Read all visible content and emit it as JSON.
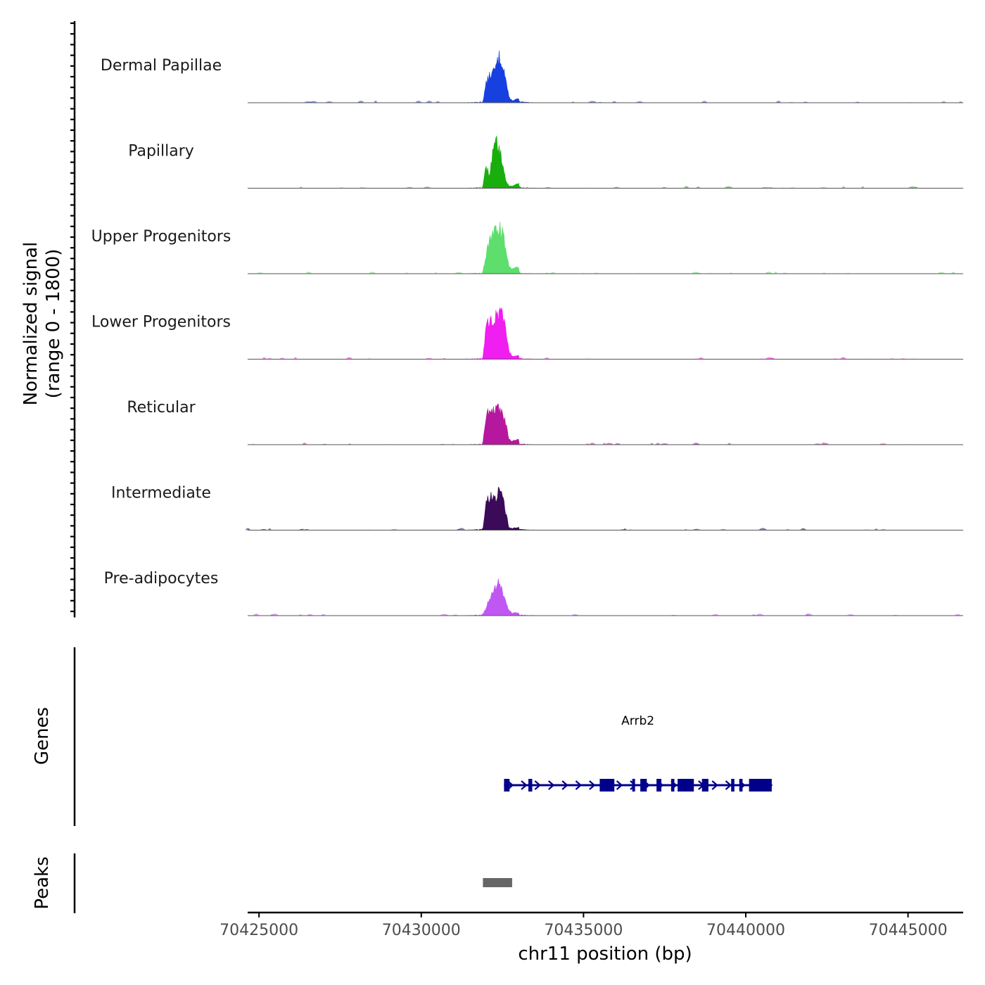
{
  "chart_data": {
    "type": "area",
    "title": "",
    "chromosome": "chr11",
    "xlabel": "chr11 position (bp)",
    "ylabel": "Normalized signal",
    "ylabel_range": "(range 0 - 1800)",
    "xlim": [
      70424650,
      70446700
    ],
    "ylim": [
      0,
      1800
    ],
    "x_ticks": [
      70425000,
      70430000,
      70435000,
      70440000,
      70445000
    ],
    "x_tick_labels": [
      "70425000",
      "70430000",
      "70435000",
      "70440000",
      "70445000"
    ],
    "peak_summary_x": [
      70431900,
      70432000,
      70432100,
      70432200,
      70432300,
      70432400,
      70432500,
      70432600,
      70432700,
      70432800,
      70433000
    ],
    "series": [
      {
        "name": "Dermal Papillae",
        "color": "#1740e0",
        "values": [
          50,
          700,
          1000,
          1100,
          1300,
          1700,
          1500,
          900,
          200,
          80,
          150
        ]
      },
      {
        "name": "Papillary",
        "color": "#1aad0e",
        "values": [
          80,
          800,
          500,
          1300,
          1700,
          1600,
          1000,
          300,
          80,
          80,
          200
        ]
      },
      {
        "name": "Upper Progenitors",
        "color": "#5ede6c",
        "values": [
          100,
          700,
          1200,
          1400,
          1600,
          1750,
          1500,
          1000,
          300,
          200,
          250
        ]
      },
      {
        "name": "Lower Progenitors",
        "color": "#f01ef0",
        "values": [
          80,
          1200,
          1400,
          1500,
          1600,
          1700,
          1600,
          1300,
          300,
          100,
          150
        ]
      },
      {
        "name": "Reticular",
        "color": "#b5179e",
        "values": [
          120,
          1100,
          1200,
          1300,
          1250,
          1300,
          1100,
          800,
          200,
          120,
          200
        ]
      },
      {
        "name": "Intermediate",
        "color": "#3b0a58",
        "values": [
          60,
          1000,
          1200,
          1300,
          1250,
          1400,
          1200,
          700,
          100,
          60,
          120
        ]
      },
      {
        "name": "Pre-adipocytes",
        "color": "#c157f2",
        "values": [
          60,
          300,
          600,
          900,
          1100,
          1200,
          900,
          500,
          200,
          100,
          100
        ]
      }
    ],
    "gene": {
      "name": "Arrb2",
      "start": 70432550,
      "end": 70440800,
      "strand": "+",
      "color": "#00008b",
      "exons": [
        [
          70432550,
          70432720
        ],
        [
          70433300,
          70433420
        ],
        [
          70435500,
          70435950
        ],
        [
          70436500,
          70436560
        ],
        [
          70436750,
          70436950
        ],
        [
          70437250,
          70437400
        ],
        [
          70437700,
          70437800
        ],
        [
          70437900,
          70438400
        ],
        [
          70438650,
          70438850
        ],
        [
          70439550,
          70439650
        ],
        [
          70439800,
          70439900
        ],
        [
          70440100,
          70440800
        ]
      ]
    },
    "peaks": {
      "label": "Peaks",
      "color": "#666666",
      "regions": [
        [
          70431900,
          70432800
        ]
      ]
    },
    "track_labels": {
      "genes": "Genes",
      "peaks": "Peaks"
    }
  }
}
